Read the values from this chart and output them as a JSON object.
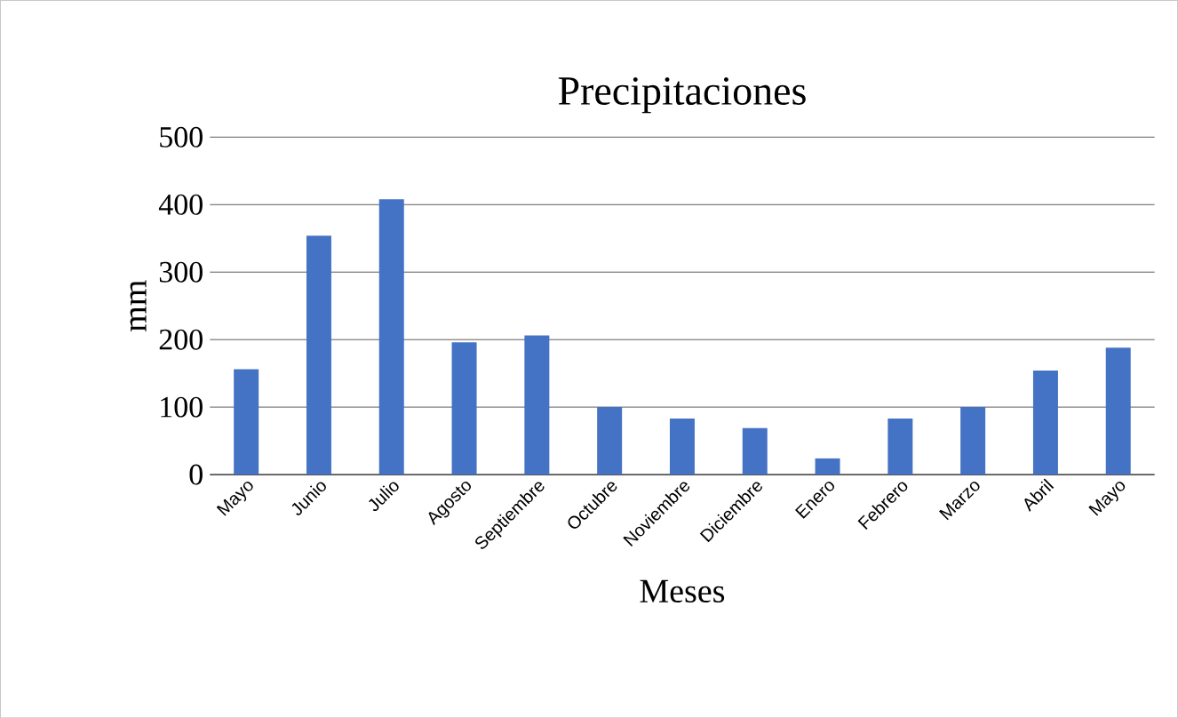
{
  "chart_data": {
    "type": "bar",
    "title": "Precipitaciones",
    "xlabel": "Meses",
    "ylabel": "mm",
    "categories": [
      "Mayo",
      "Junio",
      "Julio",
      "Agosto",
      "Septiembre",
      "Octubre",
      "Noviembre",
      "Diciembre",
      "Enero",
      "Febrero",
      "Marzo",
      "Abril",
      "Mayo"
    ],
    "values": [
      156,
      354,
      408,
      196,
      206,
      100,
      83,
      69,
      24,
      83,
      100,
      154,
      188
    ],
    "color": "#4472c4",
    "ylim": [
      0,
      500
    ],
    "yticks": [
      0,
      100,
      200,
      300,
      400,
      500
    ],
    "grid": "y"
  }
}
